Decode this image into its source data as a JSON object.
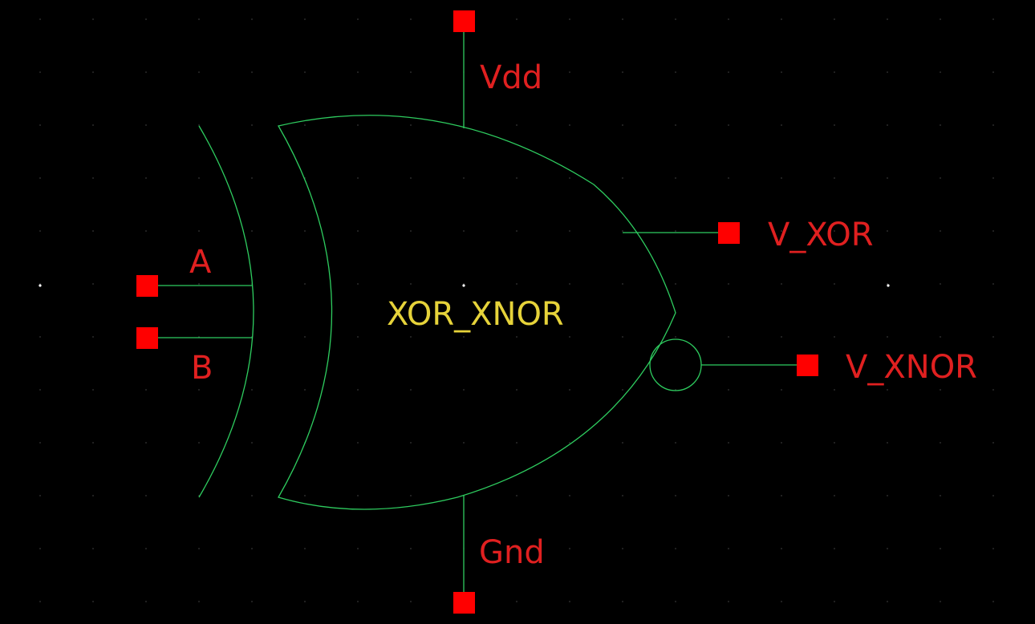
{
  "colors": {
    "background": "#000000",
    "wire": "#2ecc5f",
    "pin": "#ff0000",
    "pin_label": "#e02020",
    "cell_label": "#e6d33a",
    "grid_dot": "#5a5a5a"
  },
  "cell": {
    "name": "XOR_XNOR"
  },
  "pins": {
    "vdd": "Vdd",
    "gnd": "Gnd",
    "a": "A",
    "b": "B",
    "v_xor": "V_XOR",
    "v_xnor": "V_XNOR"
  }
}
